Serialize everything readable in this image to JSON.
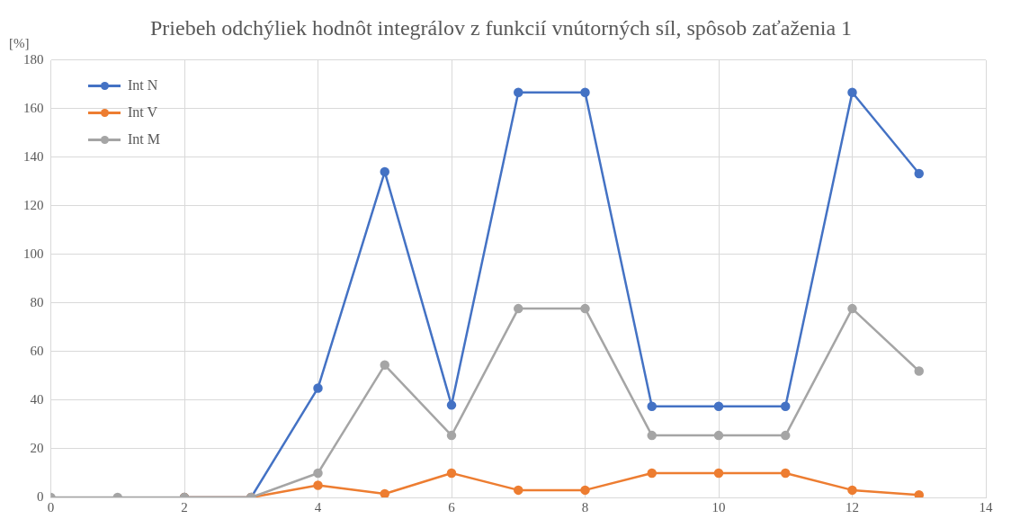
{
  "chart_data": {
    "type": "line",
    "title": "Priebeh odchýliek hodnôt integrálov z funkcií vnútorných síl, spôsob zaťaženia 1",
    "ylabel": "[%]",
    "x": [
      0,
      1,
      2,
      3,
      4,
      5,
      6,
      7,
      8,
      9,
      10,
      11,
      12,
      13
    ],
    "series": [
      {
        "name": "Int N",
        "color": "#4472c4",
        "values": [
          null,
          null,
          0,
          0,
          45,
          134,
          38,
          166.7,
          166.7,
          37.5,
          37.5,
          37.5,
          166.7,
          133.3
        ]
      },
      {
        "name": "Int V",
        "color": "#ed7d31",
        "values": [
          null,
          null,
          0,
          0,
          5,
          1.5,
          10,
          3,
          3,
          10,
          10,
          10,
          3,
          1
        ]
      },
      {
        "name": "Int M",
        "color": "#a5a5a5",
        "values": [
          0,
          0,
          0,
          0,
          10,
          54.5,
          25.5,
          77.7,
          77.7,
          25.5,
          25.5,
          25.5,
          77.7,
          52
        ]
      }
    ],
    "xlim": [
      0,
      14
    ],
    "xticks": [
      0,
      2,
      4,
      6,
      8,
      10,
      12,
      14
    ],
    "ylim": [
      0,
      180
    ],
    "yticks": [
      0,
      20,
      40,
      60,
      80,
      100,
      120,
      140,
      160,
      180
    ],
    "grid": true,
    "legend": "top left",
    "marker": "circle",
    "line_style": "solid"
  }
}
